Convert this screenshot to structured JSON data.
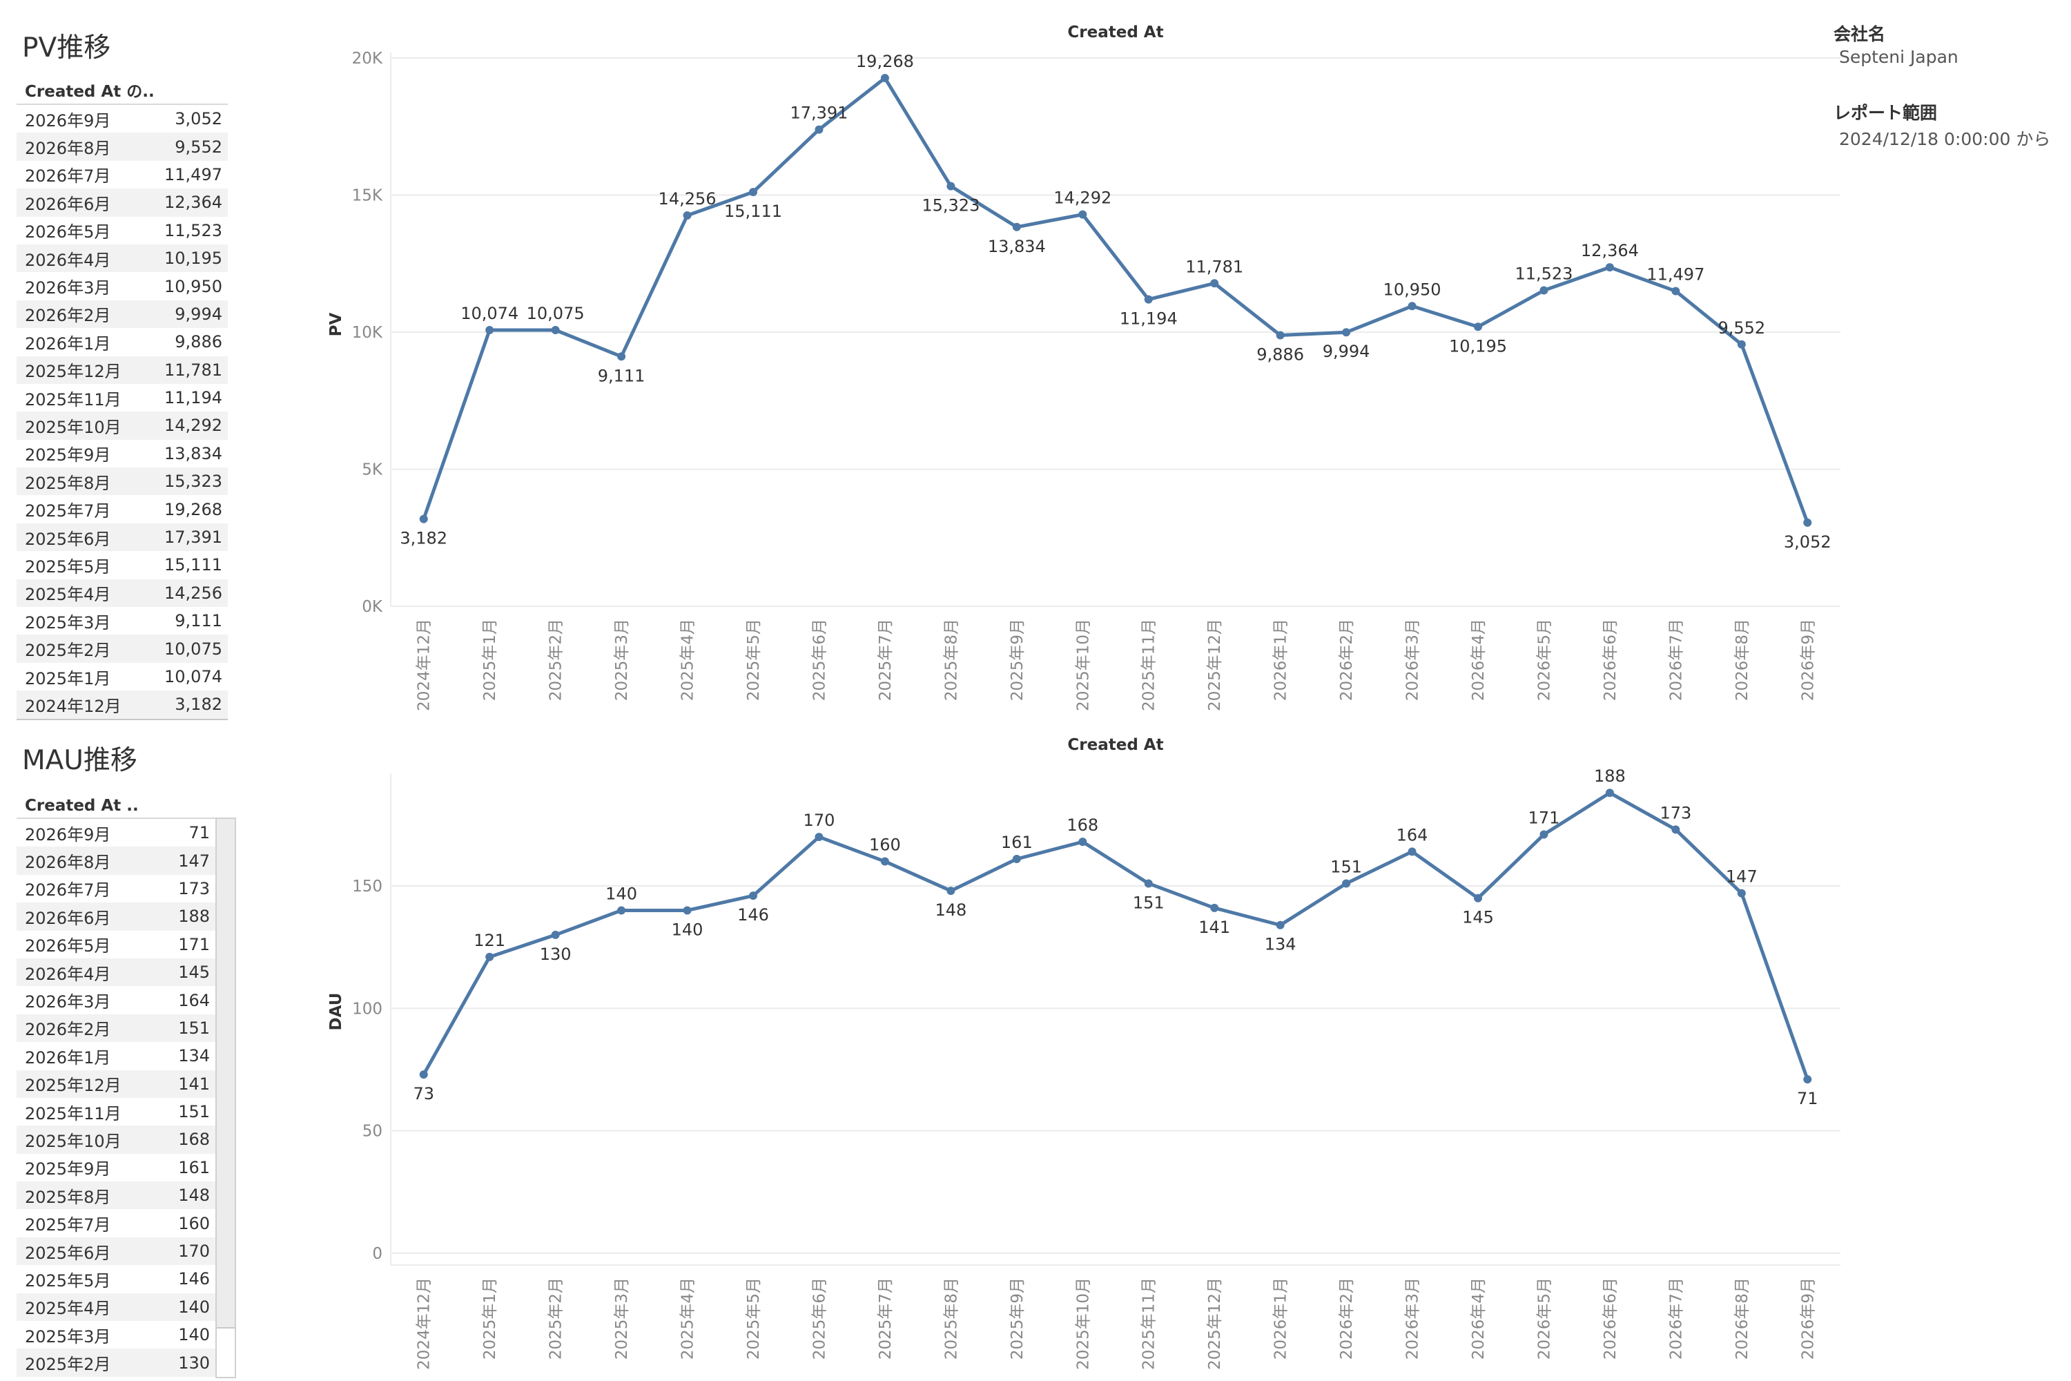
{
  "info": {
    "company_label": "会社名",
    "company_value": "Septeni Japan",
    "range_label": "レポート範囲",
    "range_value": "2024/12/18 0:00:00 から"
  },
  "pv_table": {
    "title": "PV推移",
    "header": "Created At の..",
    "rows": [
      {
        "month": "2026年9月",
        "value": "3,052"
      },
      {
        "month": "2026年8月",
        "value": "9,552"
      },
      {
        "month": "2026年7月",
        "value": "11,497"
      },
      {
        "month": "2026年6月",
        "value": "12,364"
      },
      {
        "month": "2026年5月",
        "value": "11,523"
      },
      {
        "month": "2026年4月",
        "value": "10,195"
      },
      {
        "month": "2026年3月",
        "value": "10,950"
      },
      {
        "month": "2026年2月",
        "value": "9,994"
      },
      {
        "month": "2026年1月",
        "value": "9,886"
      },
      {
        "month": "2025年12月",
        "value": "11,781"
      },
      {
        "month": "2025年11月",
        "value": "11,194"
      },
      {
        "month": "2025年10月",
        "value": "14,292"
      },
      {
        "month": "2025年9月",
        "value": "13,834"
      },
      {
        "month": "2025年8月",
        "value": "15,323"
      },
      {
        "month": "2025年7月",
        "value": "19,268"
      },
      {
        "month": "2025年6月",
        "value": "17,391"
      },
      {
        "month": "2025年5月",
        "value": "15,111"
      },
      {
        "month": "2025年4月",
        "value": "14,256"
      },
      {
        "month": "2025年3月",
        "value": "9,111"
      },
      {
        "month": "2025年2月",
        "value": "10,075"
      },
      {
        "month": "2025年1月",
        "value": "10,074"
      },
      {
        "month": "2024年12月",
        "value": "3,182"
      }
    ]
  },
  "mau_table": {
    "title": "MAU推移",
    "header": "Created At ..",
    "rows": [
      {
        "month": "2026年9月",
        "value": "71"
      },
      {
        "month": "2026年8月",
        "value": "147"
      },
      {
        "month": "2026年7月",
        "value": "173"
      },
      {
        "month": "2026年6月",
        "value": "188"
      },
      {
        "month": "2026年5月",
        "value": "171"
      },
      {
        "month": "2026年4月",
        "value": "145"
      },
      {
        "month": "2026年3月",
        "value": "164"
      },
      {
        "month": "2026年2月",
        "value": "151"
      },
      {
        "month": "2026年1月",
        "value": "134"
      },
      {
        "month": "2025年12月",
        "value": "141"
      },
      {
        "month": "2025年11月",
        "value": "151"
      },
      {
        "month": "2025年10月",
        "value": "168"
      },
      {
        "month": "2025年9月",
        "value": "161"
      },
      {
        "month": "2025年8月",
        "value": "148"
      },
      {
        "month": "2025年7月",
        "value": "160"
      },
      {
        "month": "2025年6月",
        "value": "170"
      },
      {
        "month": "2025年5月",
        "value": "146"
      },
      {
        "month": "2025年4月",
        "value": "140"
      },
      {
        "month": "2025年3月",
        "value": "140"
      },
      {
        "month": "2025年2月",
        "value": "130"
      }
    ]
  },
  "colors": {
    "line": "#4e79a7",
    "grid": "#ebebeb",
    "tick": "#888888"
  },
  "chart_data": [
    {
      "type": "line",
      "title": "Created At",
      "xlabel": "",
      "ylabel": "PV",
      "ylim": [
        0,
        20000
      ],
      "yticks": [
        0,
        5000,
        10000,
        15000,
        20000
      ],
      "ytick_labels": [
        "0K",
        "5K",
        "10K",
        "15K",
        "20K"
      ],
      "grid": true,
      "categories": [
        "2024年12月",
        "2025年1月",
        "2025年2月",
        "2025年3月",
        "2025年4月",
        "2025年5月",
        "2025年6月",
        "2025年7月",
        "2025年8月",
        "2025年9月",
        "2025年10月",
        "2025年11月",
        "2025年12月",
        "2026年1月",
        "2026年2月",
        "2026年3月",
        "2026年4月",
        "2026年5月",
        "2026年6月",
        "2026年7月",
        "2026年8月",
        "2026年9月"
      ],
      "values": [
        3182,
        10074,
        10075,
        9111,
        14256,
        15111,
        17391,
        19268,
        15323,
        13834,
        14292,
        11194,
        11781,
        9886,
        9994,
        10950,
        10195,
        11523,
        12364,
        11497,
        9552,
        3052
      ],
      "value_labels": [
        "3,182",
        "10,074",
        "10,075",
        "9,111",
        "14,256",
        "15,111",
        "17,391",
        "19,268",
        "15,323",
        "13,834",
        "14,292",
        "11,194",
        "11,781",
        "9,886",
        "9,994",
        "10,950",
        "10,195",
        "11,523",
        "12,364",
        "11,497",
        "9,552",
        "3,052"
      ],
      "label_positions": [
        "below",
        "above",
        "above",
        "below",
        "above",
        "below",
        "above",
        "above",
        "below",
        "below",
        "above",
        "below",
        "above",
        "below",
        "below",
        "above",
        "below",
        "above",
        "above",
        "above",
        "above",
        "below"
      ]
    },
    {
      "type": "line",
      "title": "Created At",
      "xlabel": "",
      "ylabel": "DAU",
      "ylim": [
        0,
        200
      ],
      "yticks": [
        0,
        50,
        100,
        150
      ],
      "ytick_labels": [
        "0",
        "50",
        "100",
        "150"
      ],
      "grid": true,
      "categories": [
        "2024年12月",
        "2025年1月",
        "2025年2月",
        "2025年3月",
        "2025年4月",
        "2025年5月",
        "2025年6月",
        "2025年7月",
        "2025年8月",
        "2025年9月",
        "2025年10月",
        "2025年11月",
        "2025年12月",
        "2026年1月",
        "2026年2月",
        "2026年3月",
        "2026年4月",
        "2026年5月",
        "2026年6月",
        "2026年7月",
        "2026年8月",
        "2026年9月"
      ],
      "values": [
        73,
        121,
        130,
        140,
        140,
        146,
        170,
        160,
        148,
        161,
        168,
        151,
        141,
        134,
        151,
        164,
        145,
        171,
        188,
        173,
        147,
        71
      ],
      "value_labels": [
        "73",
        "121",
        "130",
        "140",
        "140",
        "146",
        "170",
        "160",
        "148",
        "161",
        "168",
        "151",
        "141",
        "134",
        "151",
        "164",
        "145",
        "171",
        "188",
        "173",
        "147",
        "71"
      ],
      "label_positions": [
        "below",
        "above",
        "below",
        "above",
        "below",
        "below",
        "above",
        "above",
        "below",
        "above",
        "above",
        "below",
        "below",
        "below",
        "above",
        "above",
        "below",
        "above",
        "above",
        "above",
        "above",
        "below"
      ]
    }
  ]
}
